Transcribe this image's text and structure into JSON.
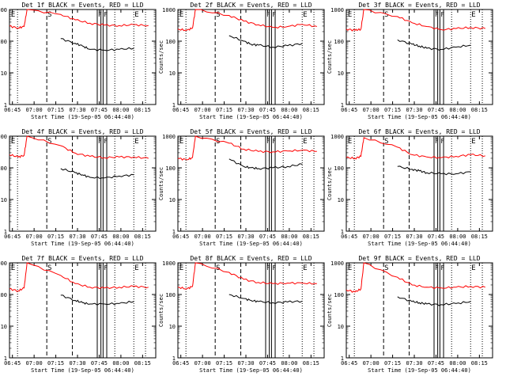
{
  "figure": {
    "xlabel": "Start Time (19-Sep-05 06:44:40)",
    "ylabel": "Counts/sec",
    "x_tick_labels": [
      "06:45",
      "07:00",
      "07:15",
      "07:30",
      "07:45",
      "08:00",
      "08:15"
    ],
    "y_tick_labels": [
      "1",
      "10",
      "100",
      "1000"
    ],
    "event_markers": [
      {
        "label": "E",
        "time": "06:45"
      },
      {
        "label": "S",
        "time": "06:53"
      },
      {
        "label": "E",
        "time": "08:05"
      }
    ],
    "colors": {
      "events": "#000000",
      "lld": "#ff0000",
      "axes": "#000000"
    }
  },
  "chart_data": [
    {
      "type": "line",
      "title": "Det 1f BLACK = Events, RED = LLD",
      "xlim": [
        0,
        100
      ],
      "ylim_log": [
        1,
        1000
      ],
      "x_units": "minutes since 06:44:40",
      "series": [
        {
          "name": "LLD",
          "color": "#ff0000",
          "x": [
            0,
            6,
            10,
            12,
            35,
            45,
            55,
            65,
            75,
            85,
            95
          ],
          "y": [
            300,
            260,
            290,
            1000,
            700,
            470,
            370,
            320,
            310,
            330,
            310
          ]
        },
        {
          "name": "Events",
          "color": "#000000",
          "x": [
            35,
            45,
            50,
            55,
            65,
            75,
            85
          ],
          "y": [
            120,
            85,
            70,
            55,
            52,
            55,
            60
          ]
        }
      ]
    },
    {
      "type": "line",
      "title": "Det 2f BLACK = Events, RED = LLD",
      "xlim": [
        0,
        100
      ],
      "ylim_log": [
        1,
        1000
      ],
      "x_units": "minutes since 06:44:40",
      "series": [
        {
          "name": "LLD",
          "color": "#ff0000",
          "x": [
            0,
            6,
            10,
            12,
            35,
            45,
            55,
            65,
            75,
            85,
            95
          ],
          "y": [
            240,
            220,
            260,
            1000,
            650,
            430,
            330,
            270,
            290,
            340,
            290
          ]
        },
        {
          "name": "Events",
          "color": "#000000",
          "x": [
            35,
            45,
            50,
            55,
            65,
            75,
            85
          ],
          "y": [
            150,
            100,
            80,
            75,
            65,
            72,
            85
          ]
        }
      ]
    },
    {
      "type": "line",
      "title": "Det 3f BLACK = Events, RED = LLD",
      "xlim": [
        0,
        100
      ],
      "ylim_log": [
        1,
        1000
      ],
      "x_units": "minutes since 06:44:40",
      "series": [
        {
          "name": "LLD",
          "color": "#ff0000",
          "x": [
            0,
            6,
            10,
            12,
            35,
            45,
            55,
            65,
            75,
            85,
            95
          ],
          "y": [
            240,
            220,
            240,
            1000,
            600,
            380,
            290,
            230,
            250,
            270,
            250
          ]
        },
        {
          "name": "Events",
          "color": "#000000",
          "x": [
            35,
            45,
            50,
            55,
            65,
            75,
            85
          ],
          "y": [
            110,
            80,
            70,
            60,
            55,
            65,
            75
          ]
        }
      ]
    },
    {
      "type": "line",
      "title": "Det 4f BLACK = Events, RED = LLD",
      "xlim": [
        0,
        100
      ],
      "ylim_log": [
        1,
        1000
      ],
      "x_units": "minutes since 06:44:40",
      "series": [
        {
          "name": "LLD",
          "color": "#ff0000",
          "x": [
            0,
            6,
            10,
            12,
            35,
            45,
            55,
            65,
            75,
            85,
            95
          ],
          "y": [
            260,
            220,
            250,
            1000,
            500,
            290,
            230,
            210,
            220,
            220,
            200
          ]
        },
        {
          "name": "Events",
          "color": "#000000",
          "x": [
            35,
            45,
            50,
            55,
            65,
            75,
            85
          ],
          "y": [
            95,
            70,
            60,
            50,
            48,
            55,
            60
          ]
        }
      ]
    },
    {
      "type": "line",
      "title": "Det 5f BLACK = Events, RED = LLD",
      "xlim": [
        0,
        100
      ],
      "ylim_log": [
        1,
        1000
      ],
      "x_units": "minutes since 06:44:40",
      "series": [
        {
          "name": "LLD",
          "color": "#ff0000",
          "x": [
            0,
            6,
            10,
            12,
            35,
            45,
            55,
            65,
            75,
            85,
            95
          ],
          "y": [
            200,
            180,
            210,
            1000,
            600,
            390,
            330,
            320,
            340,
            360,
            330
          ]
        },
        {
          "name": "Events",
          "color": "#000000",
          "x": [
            35,
            45,
            50,
            55,
            65,
            75,
            85
          ],
          "y": [
            190,
            110,
            100,
            95,
            100,
            110,
            130
          ]
        }
      ]
    },
    {
      "type": "line",
      "title": "Det 6f BLACK = Events, RED = LLD",
      "xlim": [
        0,
        100
      ],
      "ylim_log": [
        1,
        1000
      ],
      "x_units": "minutes since 06:44:40",
      "series": [
        {
          "name": "LLD",
          "color": "#ff0000",
          "x": [
            0,
            6,
            10,
            12,
            35,
            45,
            55,
            65,
            75,
            85,
            95
          ],
          "y": [
            210,
            200,
            230,
            900,
            450,
            260,
            220,
            210,
            230,
            260,
            240
          ]
        },
        {
          "name": "Events",
          "color": "#000000",
          "x": [
            35,
            45,
            50,
            55,
            65,
            75,
            85
          ],
          "y": [
            110,
            90,
            80,
            70,
            65,
            65,
            75
          ]
        }
      ]
    },
    {
      "type": "line",
      "title": "Det 7f BLACK = Events, RED = LLD",
      "xlim": [
        0,
        100
      ],
      "ylim_log": [
        1,
        1000
      ],
      "x_units": "minutes since 06:44:40",
      "series": [
        {
          "name": "LLD",
          "color": "#ff0000",
          "x": [
            0,
            6,
            10,
            12,
            35,
            45,
            55,
            65,
            75,
            85,
            95
          ],
          "y": [
            150,
            130,
            160,
            1000,
            400,
            220,
            170,
            160,
            170,
            180,
            170
          ]
        },
        {
          "name": "Events",
          "color": "#000000",
          "x": [
            35,
            45,
            50,
            55,
            65,
            75,
            85
          ],
          "y": [
            95,
            65,
            55,
            50,
            50,
            52,
            60
          ]
        }
      ]
    },
    {
      "type": "line",
      "title": "Det 8f BLACK = Events, RED = LLD",
      "xlim": [
        0,
        100
      ],
      "ylim_log": [
        1,
        1000
      ],
      "x_units": "minutes since 06:44:40",
      "series": [
        {
          "name": "LLD",
          "color": "#ff0000",
          "x": [
            0,
            6,
            10,
            12,
            35,
            45,
            55,
            65,
            75,
            85,
            95
          ],
          "y": [
            170,
            150,
            180,
            1000,
            500,
            300,
            240,
            220,
            230,
            230,
            220
          ]
        },
        {
          "name": "Events",
          "color": "#000000",
          "x": [
            35,
            45,
            50,
            55,
            65,
            75,
            85
          ],
          "y": [
            100,
            75,
            65,
            60,
            55,
            58,
            62
          ]
        }
      ]
    },
    {
      "type": "line",
      "title": "Det 9f BLACK = Events, RED = LLD",
      "xlim": [
        0,
        100
      ],
      "ylim_log": [
        1,
        1000
      ],
      "x_units": "minutes since 06:44:40",
      "series": [
        {
          "name": "LLD",
          "color": "#ff0000",
          "x": [
            0,
            6,
            10,
            12,
            35,
            45,
            55,
            65,
            75,
            85,
            95
          ],
          "y": [
            140,
            120,
            150,
            1000,
            350,
            200,
            170,
            160,
            170,
            180,
            170
          ]
        },
        {
          "name": "Events",
          "color": "#000000",
          "x": [
            35,
            45,
            50,
            55,
            65,
            75,
            85
          ],
          "y": [
            85,
            60,
            55,
            50,
            48,
            52,
            60
          ]
        }
      ]
    }
  ]
}
